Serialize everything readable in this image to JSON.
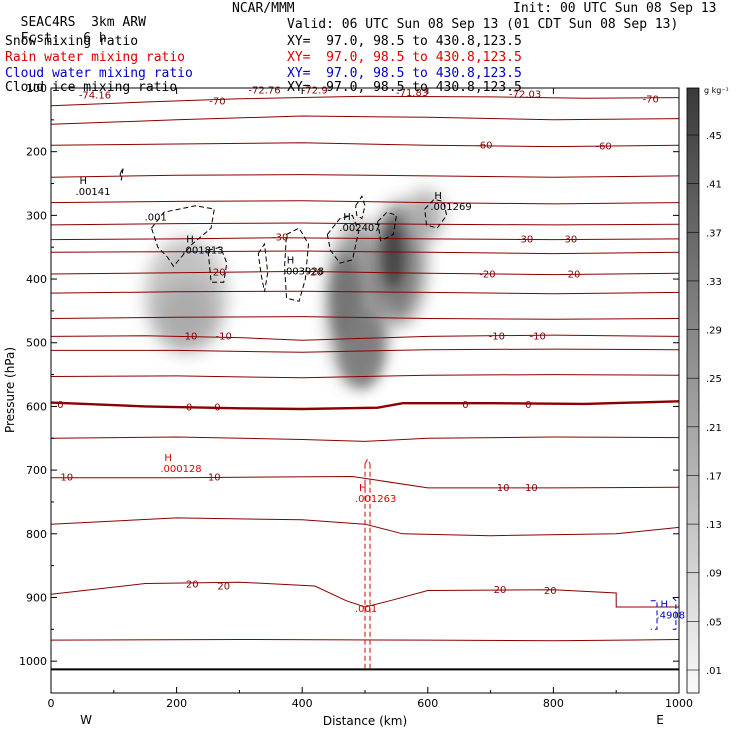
{
  "header": {
    "project": "SEAC4RS",
    "model": "3km ARW",
    "center": "NCAR/MMM",
    "init": "Init: 00 UTC Sun 08 Sep 13",
    "fcst_label": "Fcst:",
    "fcst_value": "6 h",
    "valid": "Valid: 06 UTC Sun 08 Sep 13 (01 CDT Sun 08 Sep 13)"
  },
  "fields": [
    {
      "name": "Snow mixing ratio",
      "xy": "XY=  97.0, 98.5 to 430.8,123.5",
      "color": "#000000"
    },
    {
      "name": "Rain water mixing ratio",
      "xy": "XY=  97.0, 98.5 to 430.8,123.5",
      "color": "#dd0000"
    },
    {
      "name": "Cloud water mixing ratio",
      "xy": "XY=  97.0, 98.5 to 430.8,123.5",
      "color": "#0000cc"
    },
    {
      "name": "Cloud ice mixing ratio",
      "xy": "XY=  97.0, 98.5 to 430.8,123.5",
      "color": "#000000"
    }
  ],
  "chart_data": {
    "type": "heatmap",
    "xlabel": "Distance (km)",
    "ylabel": "Pressure (hPa)",
    "xlim": [
      0,
      1000
    ],
    "ylim": [
      1050,
      100
    ],
    "x_ticks": [
      0,
      200,
      400,
      600,
      800,
      1000
    ],
    "y_ticks": [
      100,
      200,
      300,
      400,
      500,
      600,
      700,
      800,
      900,
      1000
    ],
    "x_end_labels": [
      "W",
      "E"
    ],
    "colorbar": {
      "unit": "g kg⁻¹",
      "ticks": [
        ".45",
        ".41",
        ".37",
        ".33",
        ".29",
        ".25",
        ".21",
        ".17",
        ".13",
        ".09",
        ".05",
        ".01"
      ]
    },
    "temperature_contour_labels": [
      {
        "text": "-74.16",
        "x": 70,
        "p": 112
      },
      {
        "text": "-72.76",
        "x": 340,
        "p": 104
      },
      {
        "text": "-72.9",
        "x": 420,
        "p": 104
      },
      {
        "text": "-71.83",
        "x": 575,
        "p": 108
      },
      {
        "text": "-72.03",
        "x": 755,
        "p": 110
      },
      {
        "text": "-70",
        "x": 265,
        "p": 121
      },
      {
        "text": "-70",
        "x": 955,
        "p": 118
      },
      {
        "text": "-60",
        "x": 690,
        "p": 190
      },
      {
        "text": "-60",
        "x": 880,
        "p": 192
      },
      {
        "text": "-30",
        "x": 365,
        "p": 335
      },
      {
        "text": "-30",
        "x": 755,
        "p": 338
      },
      {
        "text": "-30",
        "x": 825,
        "p": 338
      },
      {
        "text": "-20",
        "x": 265,
        "p": 390
      },
      {
        "text": "-20",
        "x": 420,
        "p": 390
      },
      {
        "text": "-20",
        "x": 695,
        "p": 393
      },
      {
        "text": "-20",
        "x": 830,
        "p": 393
      },
      {
        "text": "-10",
        "x": 220,
        "p": 490
      },
      {
        "text": "-10",
        "x": 275,
        "p": 490
      },
      {
        "text": "-10",
        "x": 710,
        "p": 490
      },
      {
        "text": "-10",
        "x": 775,
        "p": 490
      },
      {
        "text": "0",
        "x": 15,
        "p": 598
      },
      {
        "text": "0",
        "x": 220,
        "p": 602
      },
      {
        "text": "0",
        "x": 265,
        "p": 602
      },
      {
        "text": "0",
        "x": 660,
        "p": 598
      },
      {
        "text": "0",
        "x": 760,
        "p": 598
      },
      {
        "text": "10",
        "x": 25,
        "p": 712
      },
      {
        "text": "10",
        "x": 260,
        "p": 712
      },
      {
        "text": "10",
        "x": 720,
        "p": 728
      },
      {
        "text": "10",
        "x": 765,
        "p": 728
      },
      {
        "text": "20",
        "x": 225,
        "p": 880
      },
      {
        "text": "20",
        "x": 275,
        "p": 883
      },
      {
        "text": "20",
        "x": 715,
        "p": 888
      },
      {
        "text": "20",
        "x": 795,
        "p": 890
      }
    ],
    "extrema_labels": [
      {
        "mark": "H",
        "value": ".00141",
        "x": 55,
        "p": 260,
        "color": "#000000"
      },
      {
        "mark": "",
        "value": ".001",
        "x": 165,
        "p": 300,
        "color": "#000000"
      },
      {
        "mark": "H",
        "value": ".001813",
        "x": 225,
        "p": 352,
        "color": "#000000"
      },
      {
        "mark": "H",
        "value": ".003928",
        "x": 385,
        "p": 385,
        "color": "#000000"
      },
      {
        "mark": "H",
        "value": ".002407",
        "x": 475,
        "p": 317,
        "color": "#000000"
      },
      {
        "mark": "H",
        "value": ".001269",
        "x": 620,
        "p": 284,
        "color": "#000000"
      },
      {
        "mark": "H",
        "value": ".000128",
        "x": 190,
        "p": 695,
        "color": "#dd0000"
      },
      {
        "mark": "H",
        "value": ".001263",
        "x": 500,
        "p": 742,
        "color": "#dd0000"
      },
      {
        "mark": "",
        "value": ".001",
        "x": 500,
        "p": 915,
        "color": "#dd0000"
      },
      {
        "mark": "H",
        "value": ".4908",
        "x": 980,
        "p": 925,
        "color": "#0000cc"
      }
    ]
  }
}
